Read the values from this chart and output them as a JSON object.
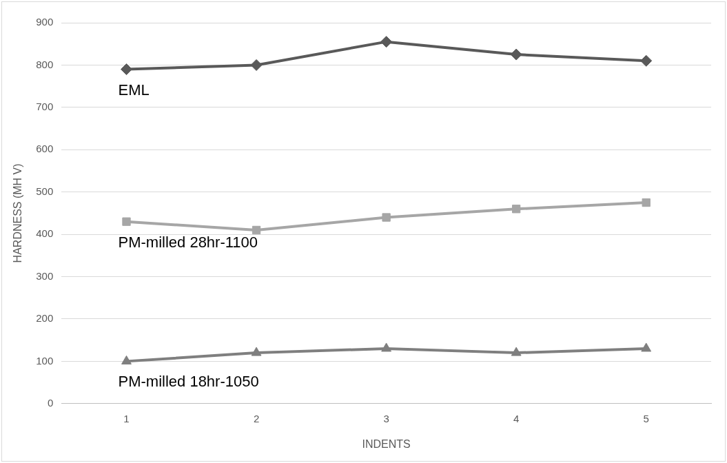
{
  "chart_data": {
    "type": "line",
    "xlabel": "INDENTS",
    "ylabel": "HARDNESS (MH V)",
    "categories": [
      "1",
      "2",
      "3",
      "4",
      "5"
    ],
    "series": [
      {
        "name": "EML",
        "color": "#595959",
        "marker": "diamond",
        "values": [
          790,
          800,
          855,
          825,
          810
        ]
      },
      {
        "name": "PM-milled 28hr-1100",
        "color": "#a6a6a6",
        "marker": "square",
        "values": [
          430,
          410,
          440,
          460,
          475
        ]
      },
      {
        "name": "PM-milled 18hr-1050",
        "color": "#7f7f7f",
        "marker": "triangle",
        "values": [
          100,
          120,
          130,
          120,
          130
        ]
      }
    ],
    "ylim": [
      0,
      900
    ],
    "yticks": [
      0,
      100,
      200,
      300,
      400,
      500,
      600,
      700,
      800,
      900
    ],
    "grid": "y",
    "legend": false
  }
}
